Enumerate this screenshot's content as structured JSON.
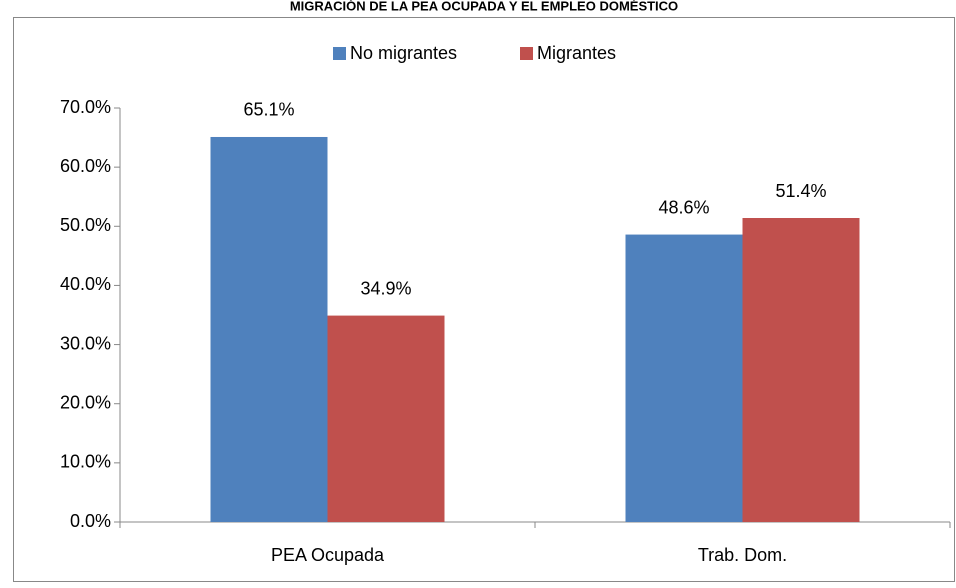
{
  "chart_data": {
    "type": "bar",
    "title": "MIGRACIÓN DE LA PEA OCUPADA Y EL EMPLEO DOMÉSTICO",
    "categories": [
      "PEA Ocupada",
      "Trab. Dom."
    ],
    "series": [
      {
        "name": "No migrantes",
        "color": "#4f81bd",
        "values": [
          65.1,
          48.6
        ],
        "value_labels": [
          "65.1%",
          "48.6%"
        ]
      },
      {
        "name": "Migrantes",
        "color": "#c0504d",
        "values": [
          34.9,
          51.4
        ],
        "value_labels": [
          "34.9%",
          "51.4%"
        ]
      }
    ],
    "ylim": [
      0,
      70
    ],
    "yticks": [
      {
        "value": 0,
        "label": "0.0%"
      },
      {
        "value": 10,
        "label": "10.0%"
      },
      {
        "value": 20,
        "label": "20.0%"
      },
      {
        "value": 30,
        "label": "30.0%"
      },
      {
        "value": 40,
        "label": "40.0%"
      },
      {
        "value": 50,
        "label": "50.0%"
      },
      {
        "value": 60,
        "label": "60.0%"
      },
      {
        "value": 70,
        "label": "70.0%"
      }
    ],
    "legend": "top"
  }
}
